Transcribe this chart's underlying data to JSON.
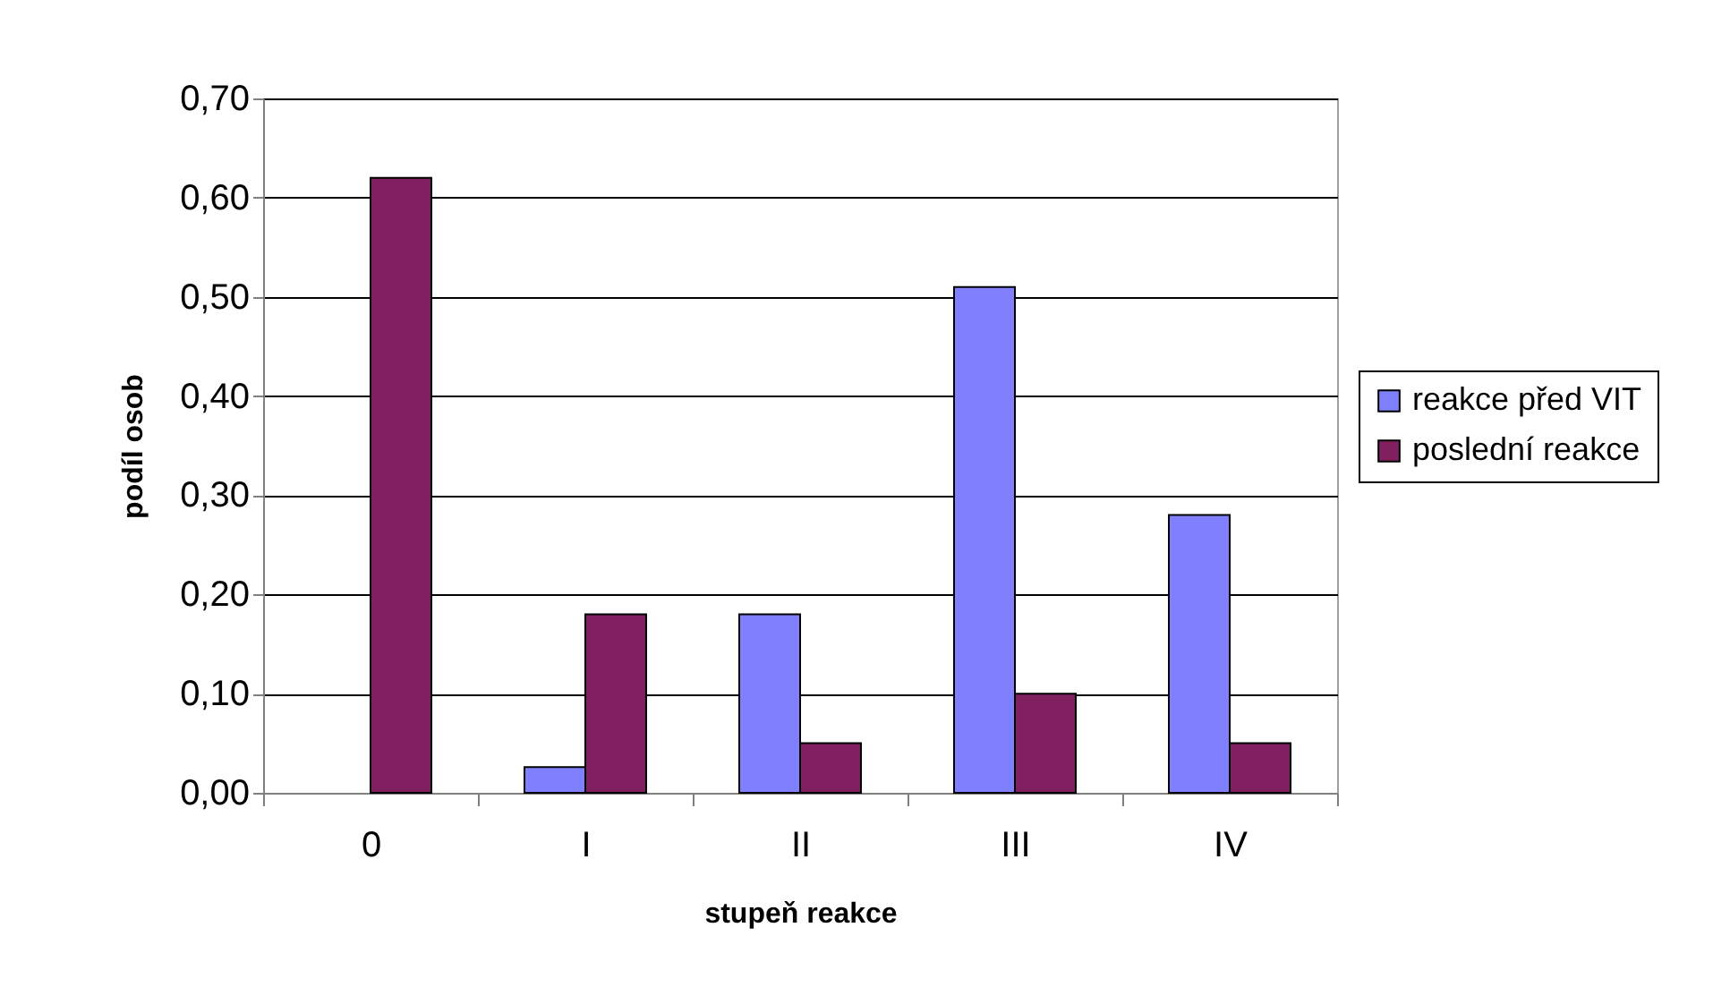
{
  "chart_data": {
    "type": "bar",
    "xlabel": "stupeň reakce",
    "ylabel": "podíl osob",
    "categories": [
      "0",
      "I",
      "II",
      "III",
      "IV"
    ],
    "series": [
      {
        "name": "reakce před VIT",
        "color": "#8080ff",
        "values": [
          null,
          0.026,
          0.18,
          0.51,
          0.28
        ]
      },
      {
        "name": "poslední reakce",
        "color": "#802060",
        "values": [
          0.62,
          0.18,
          0.05,
          0.1,
          0.05
        ]
      }
    ],
    "ylim": [
      0,
      0.7
    ],
    "yticks": [
      {
        "value": 0,
        "label": "0,00"
      },
      {
        "value": 0.1,
        "label": "0,10"
      },
      {
        "value": 0.2,
        "label": "0,20"
      },
      {
        "value": 0.3,
        "label": "0,30"
      },
      {
        "value": 0.4,
        "label": "0,40"
      },
      {
        "value": 0.5,
        "label": "0,50"
      },
      {
        "value": 0.6,
        "label": "0,60"
      },
      {
        "value": 0.7,
        "label": "0,70"
      }
    ],
    "grid": "y",
    "legend": "right"
  }
}
